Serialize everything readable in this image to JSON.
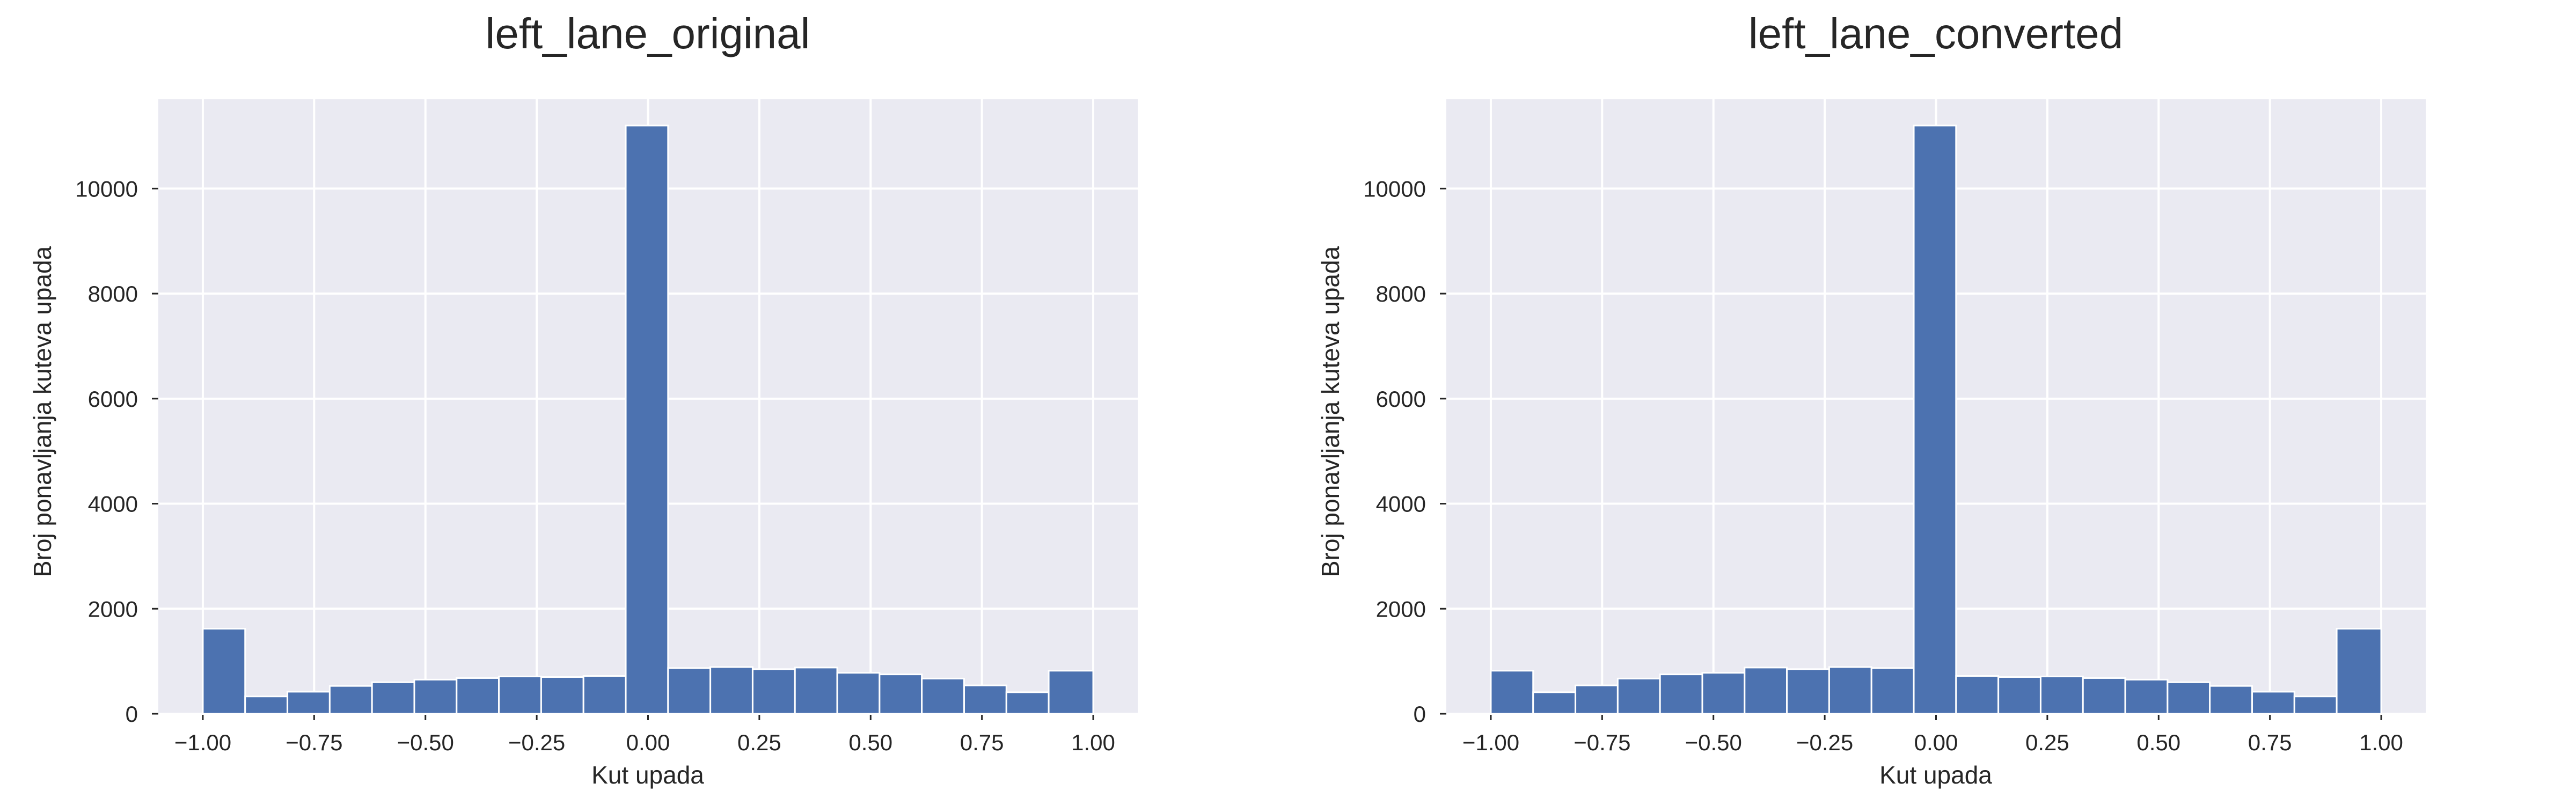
{
  "chart_data": [
    {
      "type": "bar",
      "title": "left_lane_original",
      "xlabel": "Kut upada",
      "ylabel": "Broj ponavljanja kuteva upada",
      "xlim": [
        -1.1,
        1.1
      ],
      "ylim": [
        0,
        11700
      ],
      "grid": true,
      "xticks": [
        -1.0,
        -0.75,
        -0.5,
        -0.25,
        0.0,
        0.25,
        0.5,
        0.75,
        1.0
      ],
      "xtick_labels": [
        "−1.00",
        "−0.75",
        "−0.50",
        "−0.25",
        "0.00",
        "0.25",
        "0.50",
        "0.75",
        "1.00"
      ],
      "yticks": [
        0,
        2000,
        4000,
        6000,
        8000,
        10000
      ],
      "ytick_labels": [
        "0",
        "2000",
        "4000",
        "6000",
        "8000",
        "10000"
      ],
      "bin_edges": [
        -1.0,
        -0.905,
        -0.81,
        -0.715,
        -0.62,
        -0.525,
        -0.43,
        -0.335,
        -0.24,
        -0.145,
        -0.05,
        0.045,
        0.14,
        0.235,
        0.33,
        0.425,
        0.52,
        0.615,
        0.71,
        0.805,
        0.9,
        1.0
      ],
      "values": [
        1620,
        330,
        420,
        530,
        600,
        650,
        680,
        710,
        700,
        720,
        11200,
        870,
        890,
        850,
        880,
        780,
        750,
        670,
        540,
        410,
        820
      ]
    },
    {
      "type": "bar",
      "title": "left_lane_converted",
      "xlabel": "Kut upada",
      "ylabel": "Broj ponavljanja kuteva upada",
      "xlim": [
        -1.1,
        1.1
      ],
      "ylim": [
        0,
        11700
      ],
      "grid": true,
      "xticks": [
        -1.0,
        -0.75,
        -0.5,
        -0.25,
        0.0,
        0.25,
        0.5,
        0.75,
        1.0
      ],
      "xtick_labels": [
        "−1.00",
        "−0.75",
        "−0.50",
        "−0.25",
        "0.00",
        "0.25",
        "0.50",
        "0.75",
        "1.00"
      ],
      "yticks": [
        0,
        2000,
        4000,
        6000,
        8000,
        10000
      ],
      "ytick_labels": [
        "0",
        "2000",
        "4000",
        "6000",
        "8000",
        "10000"
      ],
      "bin_edges": [
        -1.0,
        -0.905,
        -0.81,
        -0.715,
        -0.62,
        -0.525,
        -0.43,
        -0.335,
        -0.24,
        -0.145,
        -0.05,
        0.045,
        0.14,
        0.235,
        0.33,
        0.425,
        0.52,
        0.615,
        0.71,
        0.805,
        0.9,
        1.0
      ],
      "values": [
        820,
        410,
        540,
        670,
        750,
        780,
        880,
        850,
        890,
        870,
        11200,
        720,
        700,
        710,
        680,
        650,
        600,
        530,
        420,
        330,
        1620
      ]
    }
  ],
  "colors": {
    "bar": "#4c72b0",
    "plot_background": "#eaeaf2",
    "grid": "#ffffff"
  }
}
